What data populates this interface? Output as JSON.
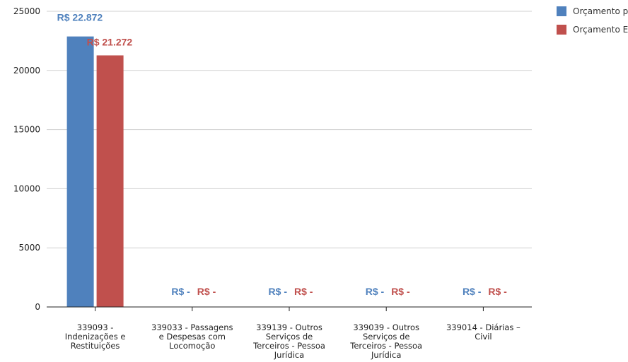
{
  "chart_data": {
    "type": "bar",
    "categories": [
      "339093 - Indenizações e Restituições",
      "339033 - Passagens e Despesas com Locomoção",
      "339139 - Outros Serviços de Terceiros - Pessoa Jurídica",
      "339039 - Outros Serviços de Terceiros - Pessoa Jurídica",
      "339014 - Diárias – Civil"
    ],
    "category_label_lines": [
      [
        "339093 -",
        "Indenizações e",
        "Restituições"
      ],
      [
        "339033 - Passagens",
        "e Despesas com",
        "Locomoção"
      ],
      [
        "339139 - Outros",
        "Serviços de",
        "Terceiros - Pessoa",
        "Jurídica"
      ],
      [
        "339039 - Outros",
        "Serviços de",
        "Terceiros - Pessoa",
        "Jurídica"
      ],
      [
        "339014 - Diárias –",
        "Civil"
      ]
    ],
    "series": [
      {
        "name": "Orçamento pl",
        "color": "#4f81bd",
        "values": [
          22872,
          null,
          null,
          null,
          null
        ],
        "labels": [
          "R$  22.872",
          "R$  -",
          "R$  -",
          "R$  -",
          "R$  -"
        ]
      },
      {
        "name": "Orçamento Ex",
        "color": "#c0504d",
        "values": [
          21272,
          null,
          null,
          null,
          null
        ],
        "labels": [
          "R$  21.272",
          "R$  -",
          "R$  -",
          "R$  -",
          "R$  -"
        ]
      }
    ],
    "ylim": [
      0,
      25000
    ],
    "yticks": [
      0,
      5000,
      10000,
      15000,
      20000,
      25000
    ],
    "grid": true,
    "legend_position": "top-right",
    "title": "",
    "xlabel": "",
    "ylabel": ""
  }
}
